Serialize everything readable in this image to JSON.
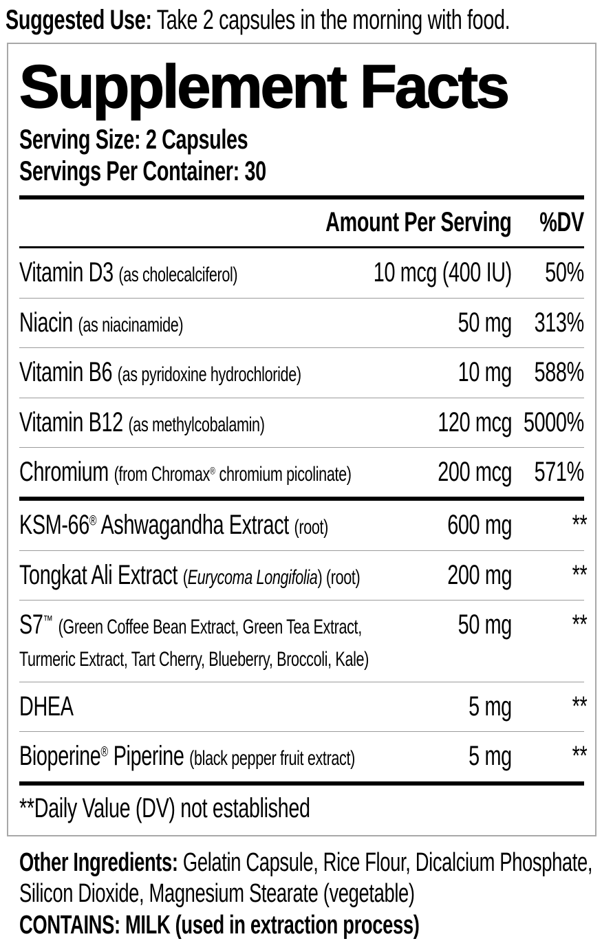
{
  "suggested_use": {
    "label": "Suggested Use:",
    "text": "Take 2 capsules in the morning with food."
  },
  "panel": {
    "title": "Supplement Facts",
    "serving_size": "Serving Size: 2 Capsules",
    "servings_per_container": "Servings Per Container: 30",
    "header": {
      "amount": "Amount Per Serving",
      "dv": "%DV"
    },
    "groups": [
      {
        "rows": [
          {
            "name": [
              {
                "t": "Vitamin D3"
              }
            ],
            "detail": [
              {
                "t": "(as cholecalciferol)"
              }
            ],
            "amount": "10 mcg (400 IU)",
            "dv": "50%"
          },
          {
            "name": [
              {
                "t": "Niacin"
              }
            ],
            "detail": [
              {
                "t": "(as niacinamide)"
              }
            ],
            "amount": "50 mg",
            "dv": "313%"
          },
          {
            "name": [
              {
                "t": "Vitamin B6"
              }
            ],
            "detail": [
              {
                "t": "(as pyridoxine hydrochloride)"
              }
            ],
            "amount": "10 mg",
            "dv": "588%"
          },
          {
            "name": [
              {
                "t": "Vitamin B12"
              }
            ],
            "detail": [
              {
                "t": "(as methylcobalamin)"
              }
            ],
            "amount": "120 mcg",
            "dv": "5000%"
          },
          {
            "name": [
              {
                "t": "Chromium"
              }
            ],
            "detail": [
              {
                "t": "(from Chromax"
              },
              {
                "t": "®",
                "s": "sup"
              },
              {
                "t": " chromium picolinate)"
              }
            ],
            "amount": "200 mcg",
            "dv": "571%"
          }
        ]
      },
      {
        "rows": [
          {
            "name": [
              {
                "t": "KSM-66"
              },
              {
                "t": "®",
                "s": "sup"
              },
              {
                "t": " Ashwagandha Extract"
              }
            ],
            "detail": [
              {
                "t": "(root)"
              }
            ],
            "amount": "600 mg",
            "dv": "**"
          },
          {
            "name": [
              {
                "t": "Tongkat Ali Extract"
              }
            ],
            "detail": [
              {
                "t": "("
              },
              {
                "t": "Eurycoma Longifolia",
                "s": "it"
              },
              {
                "t": ") (root)"
              }
            ],
            "amount": "200 mg",
            "dv": "**"
          },
          {
            "name": [
              {
                "t": "S7"
              },
              {
                "t": "™",
                "s": "sup"
              }
            ],
            "detail": [
              {
                "t": "(Green Coffee Bean Extract, Green Tea Extract,"
              },
              {
                "s": "br"
              },
              {
                "t": "Turmeric Extract, Tart Cherry, Blueberry, Broccoli, Kale)"
              }
            ],
            "amount": "50 mg",
            "dv": "**"
          },
          {
            "name": [
              {
                "t": "DHEA"
              }
            ],
            "detail": [],
            "amount": "5 mg",
            "dv": "**"
          },
          {
            "name": [
              {
                "t": "Bioperine"
              },
              {
                "t": "®",
                "s": "sup"
              },
              {
                "t": " Piperine"
              }
            ],
            "detail": [
              {
                "t": "(black pepper fruit extract)"
              }
            ],
            "amount": "5 mg",
            "dv": "**"
          }
        ]
      }
    ],
    "footnote": "**Daily Value (DV) not established"
  },
  "other_ingredients": {
    "label": "Other Ingredients:",
    "text": "Gelatin Capsule, Rice Flour, Dicalcium Phosphate, Silicon Dioxide, Magnesium Stearate (vegetable)"
  },
  "contains": "CONTAINS: MILK (used in extraction process)",
  "colors": {
    "text": "#000000",
    "rule": "#000000",
    "row_separator": "#9b9b9b",
    "panel_border": "#a8a8a8",
    "background": "#ffffff"
  }
}
